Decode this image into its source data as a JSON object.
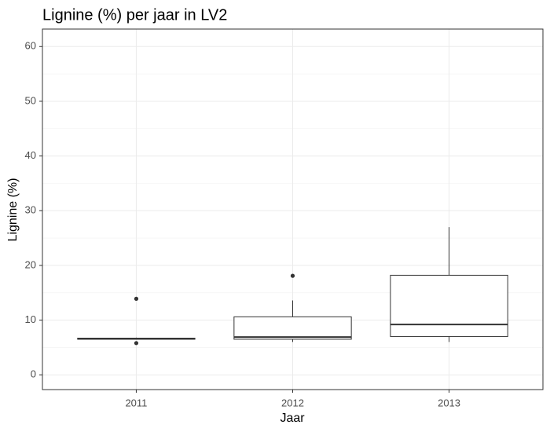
{
  "chart_data": {
    "type": "boxplot",
    "title": "Lignine (%) per jaar in LV2",
    "x_label": "Jaar",
    "y_label": "Lignine (%)",
    "categories": [
      "2011",
      "2012",
      "2013"
    ],
    "boxes": [
      {
        "low": 6.5,
        "q1": 6.5,
        "median": 6.6,
        "q3": 6.7,
        "high": 6.8,
        "outliers": [
          13.9,
          5.8
        ]
      },
      {
        "low": 6.0,
        "q1": 6.5,
        "median": 6.9,
        "q3": 10.6,
        "high": 13.6,
        "outliers": [
          18.1
        ]
      },
      {
        "low": 6.0,
        "q1": 7.0,
        "median": 9.2,
        "q3": 18.2,
        "high": 27.0,
        "outliers": []
      }
    ],
    "color": "#333333",
    "fill": "#ffffff",
    "ylim": [
      -2.7,
      63.2
    ],
    "yticks": [
      0,
      10,
      20,
      30,
      40,
      50,
      60
    ],
    "grid": true
  }
}
